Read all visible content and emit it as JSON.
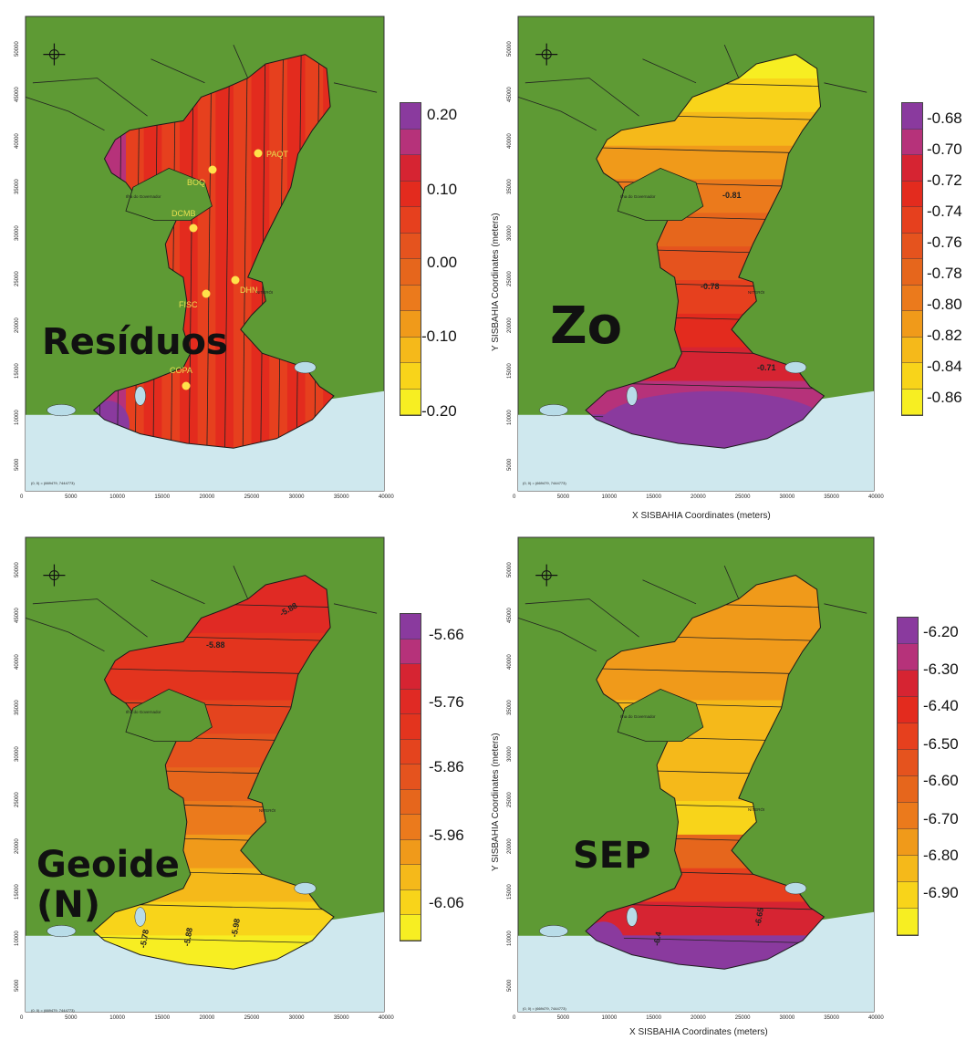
{
  "colors": {
    "land": "#5e9a34",
    "sea": "#cfe8ee",
    "island": "#b8dce8",
    "frame": "#333333"
  },
  "panels": [
    {
      "id": "residuos",
      "big_label": "Resíduos",
      "legend": {
        "labels": [
          "0.20",
          "0.10",
          "0.00",
          "-0.10",
          "-0.20"
        ],
        "colors": [
          "#8a3a9e",
          "#b6327a",
          "#d62432",
          "#e32b1e",
          "#e6401e",
          "#e5531e",
          "#e6661c",
          "#eb7a1c",
          "#f09a1a",
          "#f5b91a",
          "#f8d41a",
          "#f7ee22"
        ]
      },
      "stations": [
        "PAQT",
        "BOQ",
        "DCMB",
        "DHN",
        "FISC",
        "COPA"
      ],
      "show_y_axis_title": false,
      "show_x_axis_title": false
    },
    {
      "id": "zo",
      "big_label": "Zo",
      "legend": {
        "labels": [
          "-0.68",
          "-0.70",
          "-0.72",
          "-0.74",
          "-0.76",
          "-0.78",
          "-0.80",
          "-0.82",
          "-0.84",
          "-0.86"
        ],
        "colors": [
          "#8a3a9e",
          "#b6327a",
          "#d62432",
          "#e32b1e",
          "#e6401e",
          "#e5531e",
          "#e6661c",
          "#eb7a1c",
          "#f09a1a",
          "#f5b91a",
          "#f8d41a",
          "#f7ee22"
        ]
      },
      "contour_labels": [
        "-0.81",
        "-0.78",
        "-0.71"
      ],
      "show_y_axis_title": true,
      "show_x_axis_title": true
    },
    {
      "id": "geoide",
      "big_label": "Geoide\n(N)",
      "legend": {
        "labels": [
          "-5.66",
          "-5.76",
          "-5.86",
          "-5.96",
          "-6.06"
        ],
        "colors": [
          "#8a3a9e",
          "#b6327a",
          "#d62432",
          "#e02a24",
          "#e3341e",
          "#e4441e",
          "#e5531e",
          "#e6661c",
          "#eb7a1c",
          "#f09a1a",
          "#f5b91a",
          "#f8d41a",
          "#f7ee22"
        ]
      },
      "contour_labels": [
        "-5.88",
        "-5.88",
        "-5.78",
        "-5.88",
        "-5.98"
      ],
      "show_y_axis_title": false,
      "show_x_axis_title": false
    },
    {
      "id": "sep",
      "big_label": "SEP",
      "legend": {
        "labels": [
          "-6.20",
          "-6.30",
          "-6.40",
          "-6.50",
          "-6.60",
          "-6.70",
          "-6.80",
          "-6.90"
        ],
        "colors": [
          "#8a3a9e",
          "#b6327a",
          "#d62432",
          "#e32b1e",
          "#e6401e",
          "#e5531e",
          "#e6661c",
          "#eb7a1c",
          "#f09a1a",
          "#f5b91a",
          "#f8d41a",
          "#f7ee22"
        ]
      },
      "contour_labels": [
        "-6.4",
        "-6.65"
      ],
      "show_y_axis_title": true,
      "show_x_axis_title": true
    }
  ],
  "axes": {
    "x_title": "X SISBAHIA Coordinates (meters)",
    "y_title": "Y SISBAHIA Coordinates (meters)",
    "x_ticks": [
      "0",
      "5000",
      "10000",
      "15000",
      "20000",
      "25000",
      "30000",
      "35000",
      "40000"
    ],
    "y_ticks": [
      "5000",
      "10000",
      "15000",
      "20000",
      "25000",
      "30000",
      "35000",
      "40000",
      "45000",
      "50000"
    ]
  },
  "map_text": {
    "island": "Ilha do Governador",
    "city": "NITERÓI",
    "coord_note": "(0, 0) = (669479, 7444773)"
  }
}
